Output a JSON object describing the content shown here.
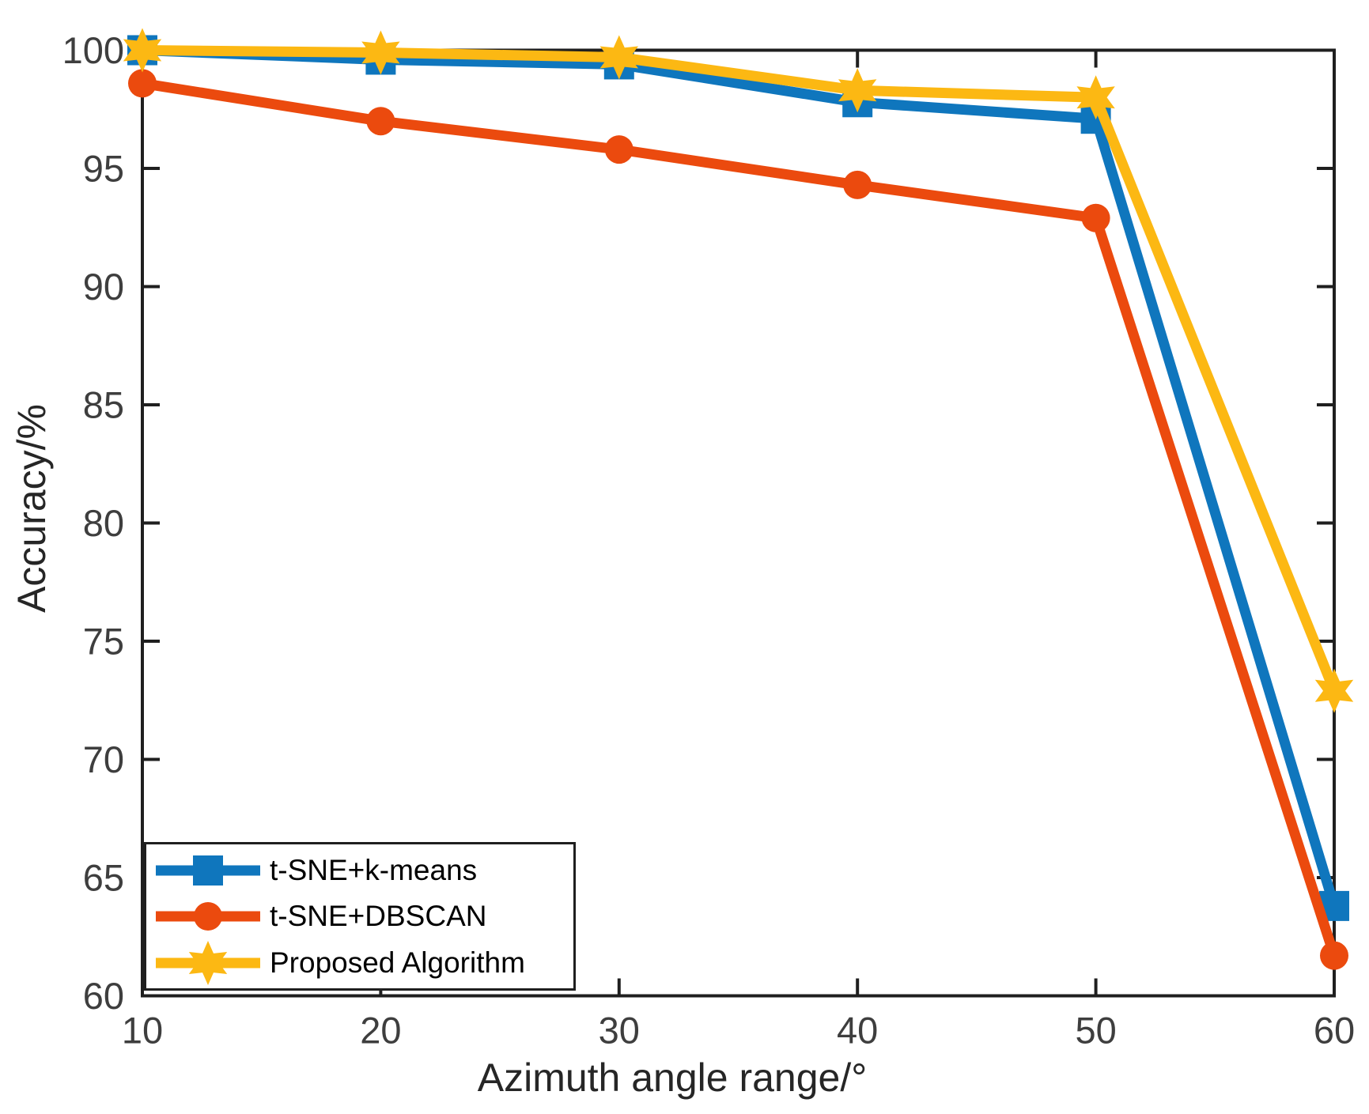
{
  "figure": {
    "background": "#ffffff"
  },
  "chart_data": {
    "type": "line",
    "title": "",
    "xlabel": "Azimuth angle range/°",
    "ylabel": "Accuracy/%",
    "x": [
      10,
      20,
      30,
      40,
      50,
      60
    ],
    "xlim": [
      10,
      60
    ],
    "ylim": [
      60,
      100
    ],
    "xticks": [
      10,
      20,
      30,
      40,
      50,
      60
    ],
    "yticks": [
      60,
      65,
      70,
      75,
      80,
      85,
      90,
      95,
      100
    ],
    "grid": false,
    "legend_position": "lower-left",
    "axis_color": "#1f1f1f",
    "tick_label_color": "#3e3e3e",
    "label_color": "#262626",
    "series": [
      {
        "name": "t-SNE+k-means",
        "color": "#0f76bd",
        "marker": "square",
        "values": [
          100,
          99.6,
          99.4,
          97.8,
          97.1,
          63.8
        ]
      },
      {
        "name": "t-SNE+DBSCAN",
        "color": "#eb4a0e",
        "marker": "circle",
        "values": [
          98.6,
          97.0,
          95.8,
          94.3,
          92.9,
          61.7
        ]
      },
      {
        "name": "Proposed Algorithm",
        "color": "#fcb813",
        "marker": "hexagram",
        "values": [
          100,
          99.9,
          99.7,
          98.3,
          98.0,
          72.9
        ]
      }
    ]
  }
}
